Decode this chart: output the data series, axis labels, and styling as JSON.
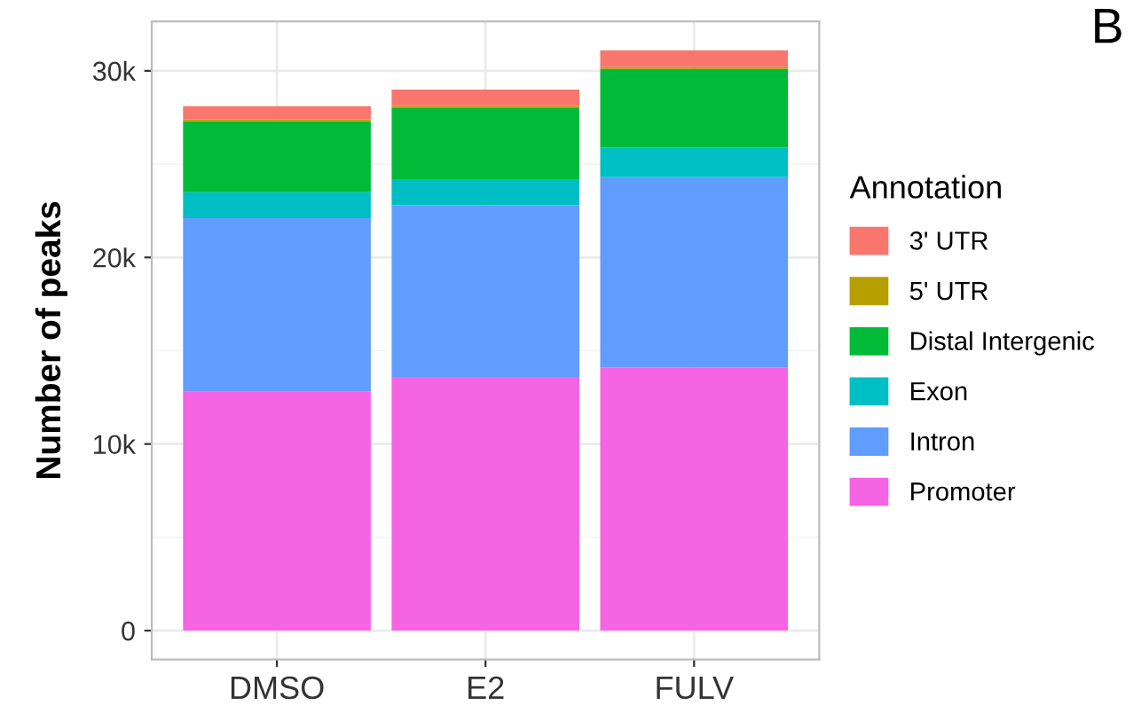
{
  "chart_data": {
    "type": "bar",
    "stacked": true,
    "ylabel": "Number of peaks",
    "legend_title": "Annotation",
    "legend": "right",
    "grid": true,
    "categories": [
      "DMSO",
      "E2",
      "FULV"
    ],
    "series": [
      {
        "name": "Promoter",
        "color": "#f564e3",
        "values": [
          12800,
          13600,
          14100
        ]
      },
      {
        "name": "Intron",
        "color": "#619cff",
        "values": [
          9300,
          9200,
          10200
        ]
      },
      {
        "name": "Exon",
        "color": "#00bfc4",
        "values": [
          1400,
          1400,
          1600
        ]
      },
      {
        "name": "Distal Intergenic",
        "color": "#00ba38",
        "values": [
          3800,
          3800,
          4200
        ]
      },
      {
        "name": "5' UTR",
        "color": "#b79f00",
        "values": [
          100,
          100,
          100
        ]
      },
      {
        "name": "3' UTR",
        "color": "#f8766d",
        "values": [
          700,
          900,
          900
        ]
      }
    ],
    "ylim": [
      -1550,
      32650
    ],
    "yticks": [
      {
        "value": 0,
        "label": "0"
      },
      {
        "value": 10000,
        "label": "10k"
      },
      {
        "value": 20000,
        "label": "20k"
      },
      {
        "value": 30000,
        "label": "30k"
      }
    ],
    "annotations": [
      "B"
    ]
  }
}
